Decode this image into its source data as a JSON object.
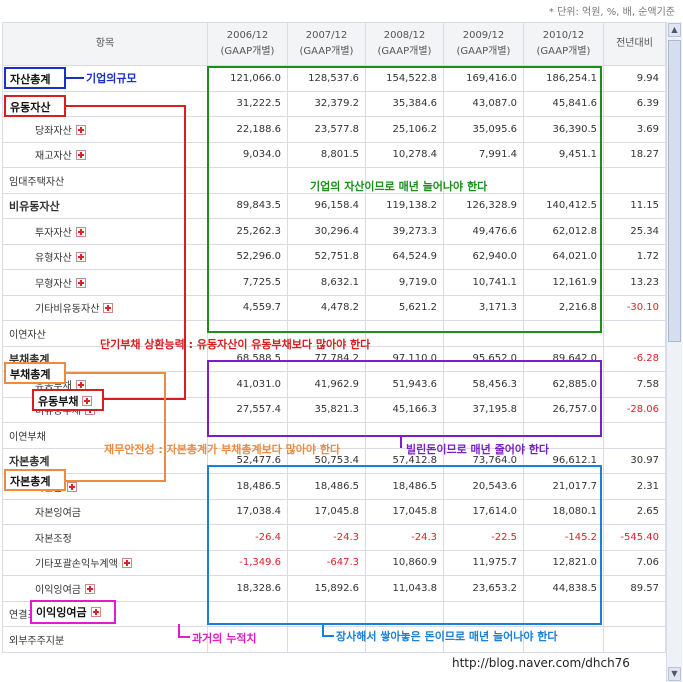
{
  "unit_note": "* 단위: 억원, %, 배, 순액기준",
  "header": {
    "label": "항목",
    "periods": [
      {
        "year": "2006/12",
        "basis": "(GAAP개별)"
      },
      {
        "year": "2007/12",
        "basis": "(GAAP개별)"
      },
      {
        "year": "2008/12",
        "basis": "(GAAP개별)"
      },
      {
        "year": "2009/12",
        "basis": "(GAAP개별)"
      },
      {
        "year": "2010/12",
        "basis": "(GAAP개별)"
      }
    ],
    "change": "전년대비"
  },
  "rows": [
    {
      "label": "자산총계",
      "values": [
        "121,066.0",
        "128,537.6",
        "154,522.8",
        "169,416.0",
        "186,254.1"
      ],
      "change": "9.94"
    },
    {
      "label": "유동자산",
      "values": [
        "31,222.5",
        "32,379.2",
        "35,384.6",
        "43,087.0",
        "45,841.6"
      ],
      "change": "6.39"
    },
    {
      "label": "당좌자산",
      "values": [
        "22,188.6",
        "23,577.8",
        "25,106.2",
        "35,095.6",
        "36,390.5"
      ],
      "change": "3.69"
    },
    {
      "label": "재고자산",
      "values": [
        "9,034.0",
        "8,801.5",
        "10,278.4",
        "7,991.4",
        "9,451.1"
      ],
      "change": "18.27"
    },
    {
      "label": "임대주택자산",
      "values": [
        "",
        "",
        "",
        "",
        ""
      ],
      "change": ""
    },
    {
      "label": "비유동자산",
      "values": [
        "89,843.5",
        "96,158.4",
        "119,138.2",
        "126,328.9",
        "140,412.5"
      ],
      "change": "11.15"
    },
    {
      "label": "투자자산",
      "values": [
        "25,262.3",
        "30,296.4",
        "39,273.3",
        "49,476.6",
        "62,012.8"
      ],
      "change": "25.34"
    },
    {
      "label": "유형자산",
      "values": [
        "52,296.0",
        "52,751.8",
        "64,524.9",
        "62,940.0",
        "64,021.0"
      ],
      "change": "1.72"
    },
    {
      "label": "무형자산",
      "values": [
        "7,725.5",
        "8,632.1",
        "9,719.0",
        "10,741.1",
        "12,161.9"
      ],
      "change": "13.23"
    },
    {
      "label": "기타비유동자산",
      "values": [
        "4,559.7",
        "4,478.2",
        "5,621.2",
        "3,171.3",
        "2,216.8"
      ],
      "change": "-30.10"
    },
    {
      "label": "이연자산",
      "values": [
        "",
        "",
        "",
        "",
        ""
      ],
      "change": ""
    },
    {
      "label": "부채총계",
      "values": [
        "68,588.5",
        "77,784.2",
        "97,110.0",
        "95,652.0",
        "89,642.0"
      ],
      "change": "-6.28"
    },
    {
      "label": "유동부채",
      "values": [
        "41,031.0",
        "41,962.9",
        "51,943.6",
        "58,456.3",
        "62,885.0"
      ],
      "change": "7.58"
    },
    {
      "label": "비유동부채",
      "values": [
        "27,557.4",
        "35,821.3",
        "45,166.3",
        "37,195.8",
        "26,757.0"
      ],
      "change": "-28.06"
    },
    {
      "label": "이연부채",
      "values": [
        "",
        "",
        "",
        "",
        ""
      ],
      "change": ""
    },
    {
      "label": "자본총계",
      "values": [
        "52,477.6",
        "50,753.4",
        "57,412.8",
        "73,764.0",
        "96,612.1"
      ],
      "change": "30.97"
    },
    {
      "label": "자본금",
      "values": [
        "18,486.5",
        "18,486.5",
        "18,486.5",
        "20,543.6",
        "21,017.7"
      ],
      "change": "2.31"
    },
    {
      "label": "자본잉여금",
      "values": [
        "17,038.4",
        "17,045.8",
        "17,045.8",
        "17,614.0",
        "18,080.1"
      ],
      "change": "2.65"
    },
    {
      "label": "자본조정",
      "values": [
        "-26.4",
        "-24.3",
        "-24.3",
        "-22.5",
        "-145.2"
      ],
      "change": "-545.40"
    },
    {
      "label": "기타포괄손익누계액",
      "values": [
        "-1,349.6",
        "-647.3",
        "10,860.9",
        "11,975.7",
        "12,821.0"
      ],
      "change": "7.06"
    },
    {
      "label": "이익잉여금",
      "values": [
        "18,328.6",
        "15,892.6",
        "11,043.8",
        "23,653.2",
        "44,838.5"
      ],
      "change": "89.57"
    },
    {
      "label": "연결조정대",
      "values": [
        "",
        "",
        "",
        "",
        ""
      ],
      "change": ""
    },
    {
      "label": "외부주주지분",
      "values": [
        "",
        "",
        "",
        "",
        ""
      ],
      "change": ""
    }
  ],
  "annotations": {
    "scale": "기업의규모",
    "assets_grow": "기업의 자산이므로 매년 늘어나야 한다",
    "liquidity": "단기부채 상환능력 : 유동자산이 유동부채보다 많아야 한다",
    "debt_shrink": "빌린돈이므로 매년 줄어야 한다",
    "soundness": "재무안전성 : 자본총계가 부채총계보다 많아야 한다",
    "earnings": "과거의 누적치",
    "equity_grow": "장사해서 쌓아놓은 돈이므로 매년 늘어나야 한다"
  },
  "colors": {
    "green": "#1a8f1a",
    "red": "#d81e1e",
    "blue": "#1a2fc8",
    "orange": "#f08a3c",
    "purple": "#7a1fc8",
    "cyan": "#1a7fd6",
    "magenta": "#e01ec8",
    "negative": "#e0202a"
  },
  "footer_url": "http://blog.naver.com/dhch76"
}
